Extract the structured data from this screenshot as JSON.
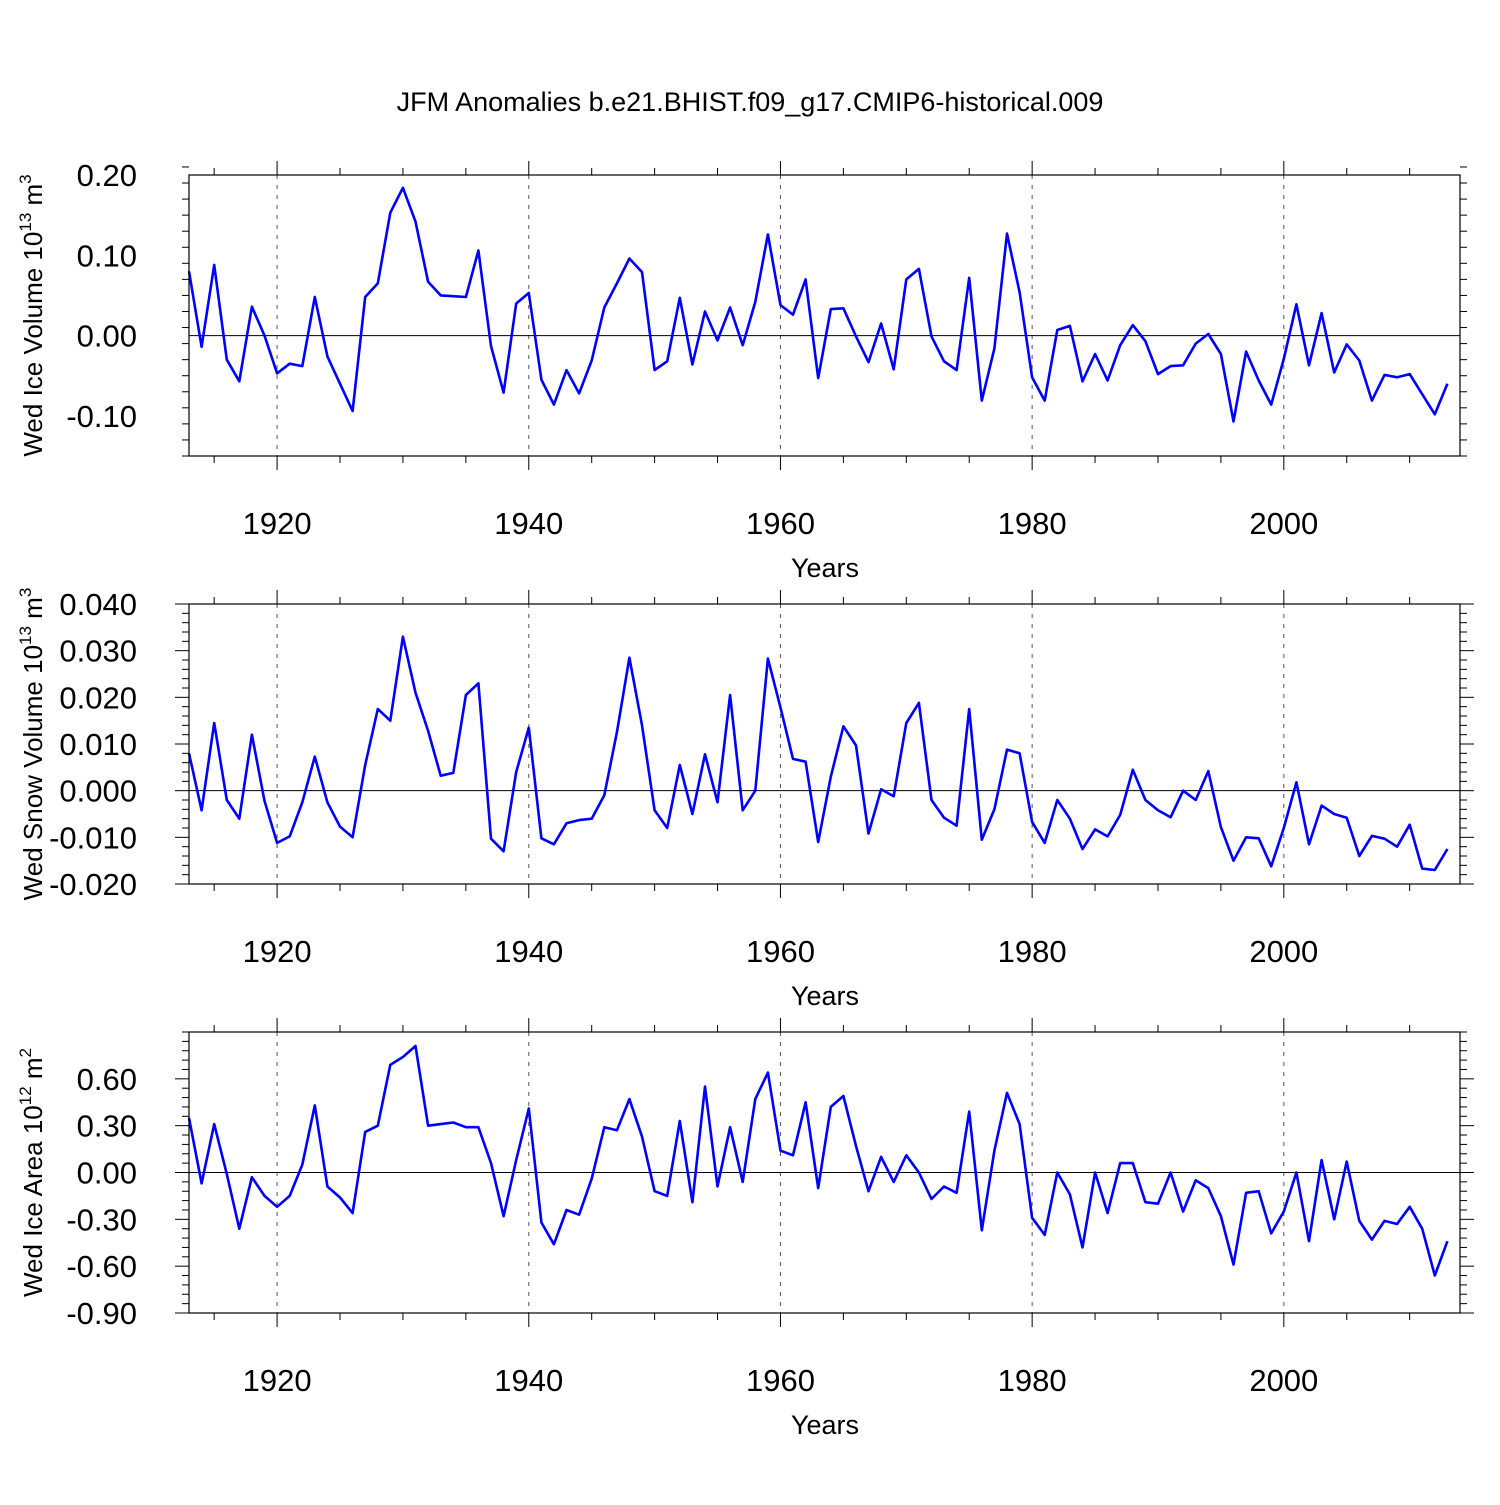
{
  "title": "JFM Anomalies b.e21.BHIST.f09_g17.CMIP6-historical.009",
  "line_color": "#0000ff",
  "chart_data": [
    {
      "type": "line",
      "xlabel": "Years",
      "ylabel": {
        "main": "Wed Ice Volume 10",
        "exponent": "13",
        "unit": " m",
        "unit_exponent": "3"
      },
      "xlim": [
        1913,
        2014
      ],
      "ylim": [
        -0.15,
        0.2
      ],
      "xticks": [
        1920,
        1940,
        1960,
        1980,
        2000
      ],
      "yticks": [
        0.2,
        0.1,
        0.0,
        -0.1
      ],
      "ytick_labels": [
        "0.20",
        "0.10",
        "0.00",
        "-0.10"
      ],
      "grid": "dashed vertical lines at major x ticks",
      "x_start": 1913,
      "values": [
        0.08,
        -0.014,
        0.088,
        -0.03,
        -0.057,
        0.036,
        0.0,
        -0.047,
        -0.035,
        -0.038,
        0.048,
        -0.026,
        -0.06,
        -0.094,
        0.048,
        0.065,
        0.153,
        0.184,
        0.142,
        0.067,
        0.05,
        0.049,
        0.048,
        0.106,
        -0.013,
        -0.071,
        0.04,
        0.053,
        -0.055,
        -0.086,
        -0.043,
        -0.072,
        -0.031,
        0.035,
        0.065,
        0.096,
        0.079,
        -0.043,
        -0.032,
        0.047,
        -0.036,
        0.03,
        -0.006,
        0.035,
        -0.012,
        0.042,
        0.126,
        0.038,
        0.026,
        0.07,
        -0.053,
        0.033,
        0.034,
        -0.001,
        -0.033,
        0.015,
        -0.042,
        0.07,
        0.083,
        -0.001,
        -0.032,
        -0.043,
        0.072,
        -0.081,
        -0.016,
        0.127,
        0.054,
        -0.052,
        -0.081,
        0.007,
        0.012,
        -0.057,
        -0.023,
        -0.056,
        -0.012,
        0.013,
        -0.007,
        -0.048,
        -0.038,
        -0.037,
        -0.01,
        0.002,
        -0.023,
        -0.107,
        -0.02,
        -0.056,
        -0.086,
        -0.029,
        0.039,
        -0.037,
        0.028,
        -0.046,
        -0.011,
        -0.031,
        -0.081,
        -0.049,
        -0.052,
        -0.048,
        -0.073,
        -0.098,
        -0.06
      ]
    },
    {
      "type": "line",
      "xlabel": "Years",
      "ylabel": {
        "main": "Wed Snow Volume 10",
        "exponent": "13",
        "unit": " m",
        "unit_exponent": "3"
      },
      "xlim": [
        1913,
        2014
      ],
      "ylim": [
        -0.02,
        0.04
      ],
      "xticks": [
        1920,
        1940,
        1960,
        1980,
        2000
      ],
      "yticks": [
        0.04,
        0.03,
        0.02,
        0.01,
        0.0,
        -0.01,
        -0.02
      ],
      "ytick_labels": [
        "0.040",
        "0.030",
        "0.020",
        "0.010",
        "0.000",
        "-0.010",
        "-0.020"
      ],
      "grid": "dashed vertical lines at major x ticks",
      "x_start": 1913,
      "values": [
        0.008,
        -0.0042,
        0.0145,
        -0.002,
        -0.006,
        0.012,
        -0.0022,
        -0.0112,
        -0.0098,
        -0.0025,
        0.0073,
        -0.0025,
        -0.0077,
        -0.01,
        0.0055,
        0.0175,
        0.015,
        0.033,
        0.021,
        0.0128,
        0.0032,
        0.0038,
        0.0205,
        0.023,
        -0.0103,
        -0.013,
        0.004,
        0.0135,
        -0.0102,
        -0.0115,
        -0.007,
        -0.0063,
        -0.006,
        -0.001,
        0.0125,
        0.0285,
        0.014,
        -0.0042,
        -0.008,
        0.0055,
        -0.005,
        0.0078,
        -0.0025,
        0.0205,
        -0.0042,
        0.0,
        0.0283,
        0.0178,
        0.0068,
        0.0062,
        -0.011,
        0.003,
        0.0138,
        0.0097,
        -0.0092,
        0.0003,
        -0.0012,
        0.0145,
        0.0188,
        -0.002,
        -0.0058,
        -0.0075,
        0.0175,
        -0.0105,
        -0.004,
        0.0088,
        0.008,
        -0.0067,
        -0.0112,
        -0.002,
        -0.006,
        -0.0125,
        -0.0083,
        -0.0098,
        -0.0052,
        0.0045,
        -0.002,
        -0.0042,
        -0.0057,
        0.0,
        -0.002,
        0.0042,
        -0.0078,
        -0.015,
        -0.01,
        -0.0102,
        -0.0162,
        -0.008,
        0.0018,
        -0.0115,
        -0.0032,
        -0.005,
        -0.0058,
        -0.014,
        -0.0097,
        -0.0103,
        -0.012,
        -0.0073,
        -0.0167,
        -0.017,
        -0.0125
      ]
    },
    {
      "type": "line",
      "xlabel": "Years",
      "ylabel": {
        "main": "Wed Ice Area 10",
        "exponent": "12",
        "unit": " m",
        "unit_exponent": "2"
      },
      "xlim": [
        1913,
        2014
      ],
      "ylim": [
        -0.9,
        0.9
      ],
      "xticks": [
        1920,
        1940,
        1960,
        1980,
        2000
      ],
      "yticks": [
        0.6,
        0.3,
        0.0,
        -0.3,
        -0.6,
        -0.9
      ],
      "ytick_labels": [
        "0.60",
        "0.30",
        "0.00",
        "-0.30",
        "-0.60",
        "-0.90"
      ],
      "grid": "dashed vertical lines at major x ticks",
      "x_start": 1913,
      "values": [
        0.35,
        -0.07,
        0.31,
        -0.01,
        -0.36,
        -0.03,
        -0.15,
        -0.22,
        -0.15,
        0.05,
        0.43,
        -0.09,
        -0.16,
        -0.26,
        0.26,
        0.3,
        0.69,
        0.74,
        0.81,
        0.3,
        0.31,
        0.32,
        0.29,
        0.29,
        0.06,
        -0.28,
        0.08,
        0.41,
        -0.32,
        -0.46,
        -0.24,
        -0.27,
        -0.04,
        0.29,
        0.27,
        0.47,
        0.23,
        -0.12,
        -0.15,
        0.33,
        -0.19,
        0.55,
        -0.09,
        0.29,
        -0.06,
        0.47,
        0.64,
        0.14,
        0.11,
        0.45,
        -0.1,
        0.42,
        0.49,
        0.17,
        -0.12,
        0.1,
        -0.06,
        0.11,
        0.0,
        -0.17,
        -0.09,
        -0.13,
        0.39,
        -0.37,
        0.14,
        0.51,
        0.31,
        -0.29,
        -0.4,
        0.0,
        -0.14,
        -0.48,
        0.0,
        -0.26,
        0.06,
        0.06,
        -0.19,
        -0.2,
        0.0,
        -0.25,
        -0.05,
        -0.1,
        -0.28,
        -0.59,
        -0.13,
        -0.12,
        -0.39,
        -0.25,
        0.0,
        -0.44,
        0.08,
        -0.3,
        0.07,
        -0.31,
        -0.43,
        -0.31,
        -0.33,
        -0.22,
        -0.36,
        -0.66,
        -0.44
      ]
    }
  ]
}
